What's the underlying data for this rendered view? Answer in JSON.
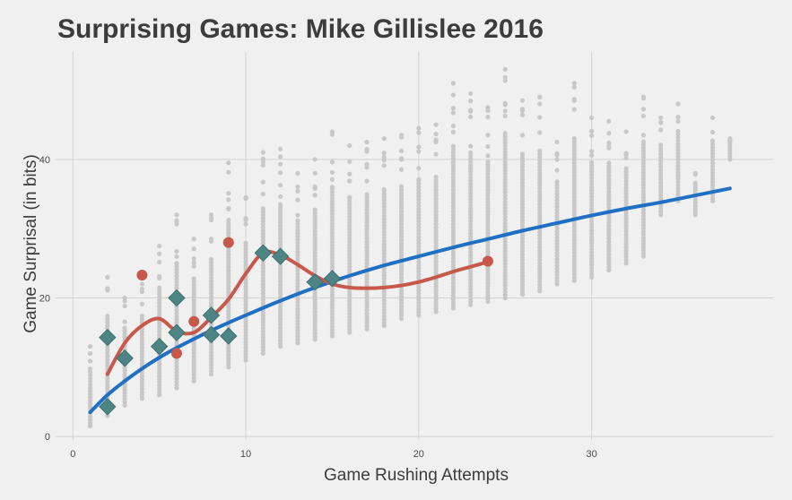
{
  "chart_data": {
    "type": "scatter",
    "title": "Surprising Games: Mike Gillislee 2016",
    "xlabel": "Game Rushing Attempts",
    "ylabel": "Game Surprisal (in bits)",
    "xlim": [
      -1,
      40.5
    ],
    "ylim": [
      -0.5,
      55.5
    ],
    "x_ticks": [
      0,
      10,
      20,
      30
    ],
    "y_ticks": [
      0,
      20,
      40
    ],
    "grid": true,
    "colors": {
      "background": "#f0f0f0",
      "grid": "#d2d2d2",
      "background_points": "#c8c8c8",
      "league_trend": "#1f6fc4",
      "player_trend": "#c8584a",
      "player_games_diamond": "#4d8585",
      "player_games_circle": "#c8584a"
    },
    "background_distribution": [
      {
        "x": 1,
        "ymin": 1.5,
        "ymax": 13
      },
      {
        "x": 2,
        "ymin": 3,
        "ymax": 23
      },
      {
        "x": 3,
        "ymin": 4.5,
        "ymax": 20
      },
      {
        "x": 4,
        "ymin": 5.5,
        "ymax": 22
      },
      {
        "x": 5,
        "ymin": 6,
        "ymax": 27.5
      },
      {
        "x": 6,
        "ymin": 7,
        "ymax": 32
      },
      {
        "x": 7,
        "ymin": 8,
        "ymax": 28.5
      },
      {
        "x": 8,
        "ymin": 9,
        "ymax": 32
      },
      {
        "x": 9,
        "ymin": 10,
        "ymax": 39.5
      },
      {
        "x": 10,
        "ymin": 11,
        "ymax": 34.5
      },
      {
        "x": 11,
        "ymin": 12,
        "ymax": 41
      },
      {
        "x": 12,
        "ymin": 13,
        "ymax": 41.5
      },
      {
        "x": 13,
        "ymin": 13.5,
        "ymax": 38
      },
      {
        "x": 14,
        "ymin": 14,
        "ymax": 40
      },
      {
        "x": 15,
        "ymin": 14.5,
        "ymax": 44
      },
      {
        "x": 16,
        "ymin": 15,
        "ymax": 42
      },
      {
        "x": 17,
        "ymin": 15.5,
        "ymax": 42.5
      },
      {
        "x": 18,
        "ymin": 16,
        "ymax": 43
      },
      {
        "x": 19,
        "ymin": 17,
        "ymax": 43.5
      },
      {
        "x": 20,
        "ymin": 17.5,
        "ymax": 44.5
      },
      {
        "x": 21,
        "ymin": 18,
        "ymax": 45
      },
      {
        "x": 22,
        "ymin": 18.5,
        "ymax": 51
      },
      {
        "x": 23,
        "ymin": 19,
        "ymax": 49.5
      },
      {
        "x": 24,
        "ymin": 19.5,
        "ymax": 47.5
      },
      {
        "x": 25,
        "ymin": 20,
        "ymax": 53
      },
      {
        "x": 26,
        "ymin": 20.5,
        "ymax": 48.5
      },
      {
        "x": 27,
        "ymin": 21,
        "ymax": 49
      },
      {
        "x": 28,
        "ymin": 22,
        "ymax": 42.5
      },
      {
        "x": 29,
        "ymin": 22.5,
        "ymax": 51
      },
      {
        "x": 30,
        "ymin": 23,
        "ymax": 46
      },
      {
        "x": 31,
        "ymin": 24,
        "ymax": 45.5
      },
      {
        "x": 32,
        "ymin": 25,
        "ymax": 44
      },
      {
        "x": 33,
        "ymin": 26,
        "ymax": 49
      },
      {
        "x": 34,
        "ymin": 32,
        "ymax": 46
      },
      {
        "x": 35,
        "ymin": 34,
        "ymax": 48
      },
      {
        "x": 36,
        "ymin": 32,
        "ymax": 38
      },
      {
        "x": 37,
        "ymin": 34,
        "ymax": 46
      },
      {
        "x": 38,
        "ymin": 40,
        "ymax": 43
      }
    ],
    "series": [
      {
        "kind": "trend",
        "color": "#1f6fc4",
        "x": [
          1,
          2,
          3,
          4,
          5,
          6,
          8,
          10,
          12,
          14,
          16,
          18,
          20,
          22,
          24,
          26,
          28,
          30,
          32,
          34,
          36,
          38
        ],
        "y": [
          3.5,
          6,
          8,
          9.8,
          11.4,
          12.8,
          15.3,
          17.5,
          19.6,
          21.5,
          23.2,
          24.7,
          26,
          27.3,
          28.5,
          29.7,
          30.8,
          31.9,
          32.9,
          33.8,
          34.8,
          35.8
        ]
      },
      {
        "kind": "trend",
        "color": "#c8584a",
        "x": [
          2,
          3,
          4,
          5,
          6,
          7,
          8,
          9,
          10,
          11,
          12,
          13,
          14,
          15,
          16,
          17,
          18,
          19,
          20,
          21,
          22,
          23,
          24
        ],
        "y": [
          9,
          13.5,
          16,
          17,
          15.2,
          15,
          17.2,
          19.8,
          23.5,
          26.5,
          26.2,
          24.8,
          23.2,
          22,
          21.5,
          21.4,
          21.5,
          21.8,
          22.3,
          23,
          23.8,
          24.5,
          25.2
        ]
      },
      {
        "kind": "player_games",
        "marker": "diamond",
        "color": "#4d8585",
        "points": [
          {
            "x": 2,
            "y": 14.3
          },
          {
            "x": 2,
            "y": 4.3
          },
          {
            "x": 3,
            "y": 11.3
          },
          {
            "x": 5,
            "y": 13
          },
          {
            "x": 6,
            "y": 20
          },
          {
            "x": 6,
            "y": 15
          },
          {
            "x": 8,
            "y": 17.5
          },
          {
            "x": 8,
            "y": 14.7
          },
          {
            "x": 9,
            "y": 14.5
          },
          {
            "x": 11,
            "y": 26.5
          },
          {
            "x": 12,
            "y": 26
          },
          {
            "x": 14,
            "y": 22.3
          },
          {
            "x": 15,
            "y": 22.8
          }
        ]
      },
      {
        "kind": "player_games",
        "marker": "circle",
        "color": "#c8584a",
        "points": [
          {
            "x": 4,
            "y": 23.3
          },
          {
            "x": 6,
            "y": 12
          },
          {
            "x": 7,
            "y": 16.6
          },
          {
            "x": 9,
            "y": 28
          },
          {
            "x": 24,
            "y": 25.3
          }
        ]
      }
    ]
  }
}
